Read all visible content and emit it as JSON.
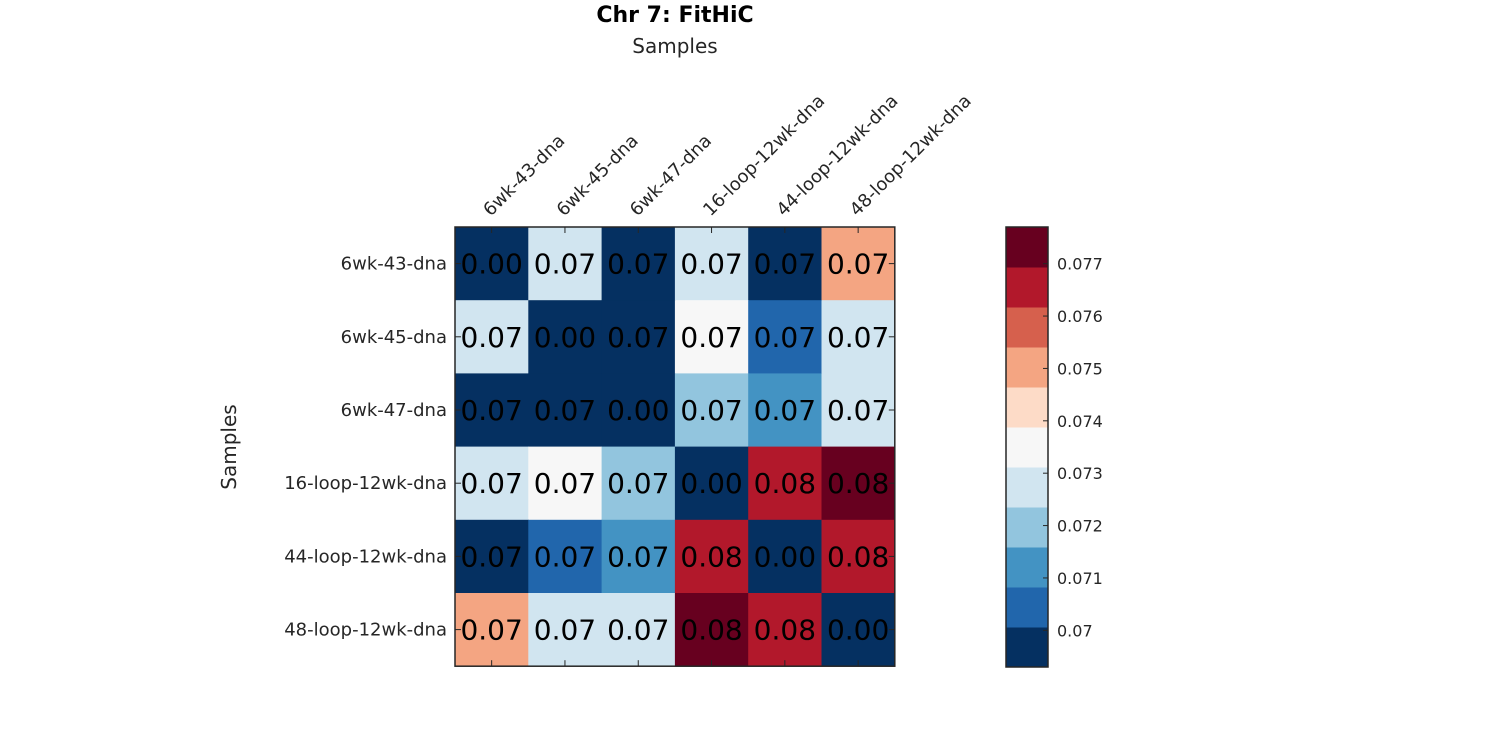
{
  "chart_data": {
    "type": "heatmap",
    "title": "Chr 7: FitHiC",
    "xlabel": "Samples",
    "ylabel": "Samples",
    "x_categories": [
      "6wk-43-dna",
      "6wk-45-dna",
      "6wk-47-dna",
      "16-loop-12wk-dna",
      "44-loop-12wk-dna",
      "48-loop-12wk-dna"
    ],
    "y_categories": [
      "6wk-43-dna",
      "6wk-45-dna",
      "6wk-47-dna",
      "16-loop-12wk-dna",
      "44-loop-12wk-dna",
      "48-loop-12wk-dna"
    ],
    "labels": [
      [
        "0.00",
        "0.07",
        "0.07",
        "0.07",
        "0.07",
        "0.07"
      ],
      [
        "0.07",
        "0.00",
        "0.07",
        "0.07",
        "0.07",
        "0.07"
      ],
      [
        "0.07",
        "0.07",
        "0.00",
        "0.07",
        "0.07",
        "0.07"
      ],
      [
        "0.07",
        "0.07",
        "0.07",
        "0.00",
        "0.08",
        "0.08"
      ],
      [
        "0.07",
        "0.07",
        "0.07",
        "0.08",
        "0.00",
        "0.08"
      ],
      [
        "0.07",
        "0.07",
        "0.07",
        "0.08",
        "0.08",
        "0.00"
      ]
    ],
    "values": [
      [
        0.0,
        0.0731,
        0.0698,
        0.0726,
        0.0698,
        0.0747
      ],
      [
        0.0731,
        0.0,
        0.0697,
        0.0732,
        0.0706,
        0.0731
      ],
      [
        0.0698,
        0.0697,
        0.0,
        0.0721,
        0.0712,
        0.0724
      ],
      [
        0.0726,
        0.0732,
        0.0721,
        0.0,
        0.0763,
        0.0774
      ],
      [
        0.0698,
        0.0706,
        0.0712,
        0.0763,
        0.0,
        0.0763
      ],
      [
        0.0747,
        0.0731,
        0.0724,
        0.0774,
        0.0763,
        0.0
      ]
    ],
    "colorbar": {
      "min": 0.0693,
      "max": 0.0777,
      "ticks": [
        0.07,
        0.071,
        0.072,
        0.073,
        0.074,
        0.075,
        0.076,
        0.077
      ],
      "tick_labels": [
        "0.07",
        "0.071",
        "0.072",
        "0.073",
        "0.074",
        "0.075",
        "0.076",
        "0.077"
      ],
      "colors": [
        "#053061",
        "#2166ac",
        "#4393c3",
        "#92c5de",
        "#d1e5f0",
        "#f7f7f7",
        "#fddbc7",
        "#f4a582",
        "#d6604d",
        "#b2182b",
        "#67001f"
      ]
    }
  }
}
